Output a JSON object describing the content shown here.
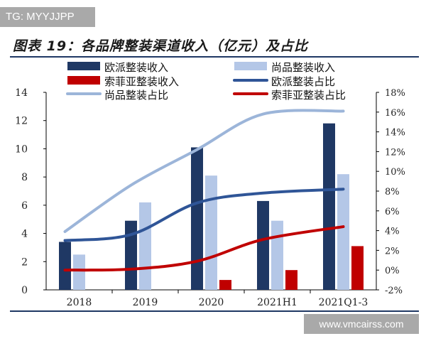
{
  "watermark_top": "TG: MYYJJPP",
  "watermark_bottom": "www.vmcairss.com",
  "title": "图表 19：各品牌整装渠道收入（亿元）及占比",
  "chart_data": {
    "type": "bar",
    "categories": [
      "2018",
      "2019",
      "2020",
      "2021H1",
      "2021Q1-3"
    ],
    "y_left": {
      "min": 0,
      "max": 14,
      "step": 2,
      "ticks": [
        "0",
        "2",
        "4",
        "6",
        "8",
        "10",
        "12",
        "14"
      ]
    },
    "y_right": {
      "min": -2,
      "max": 18,
      "step": 2,
      "ticks": [
        "-2%",
        "0%",
        "2%",
        "4%",
        "6%",
        "8%",
        "10%",
        "12%",
        "14%",
        "16%",
        "18%"
      ]
    },
    "bar_series": [
      {
        "name": "欧派整装收入",
        "values": [
          3.4,
          4.9,
          10.1,
          6.3,
          11.8
        ],
        "color": "#1f3864"
      },
      {
        "name": "尚品整装收入",
        "values": [
          2.5,
          6.2,
          8.1,
          4.9,
          8.2
        ],
        "color": "#b4c7e7"
      },
      {
        "name": "索菲亚整装收入",
        "values": [
          0,
          0,
          0.7,
          1.4,
          3.1
        ],
        "color": "#c00000"
      }
    ],
    "line_series": [
      {
        "name": "欧派整装占比",
        "values": [
          3.0,
          3.6,
          6.8,
          7.8,
          8.2
        ],
        "color": "#2f5597"
      },
      {
        "name": "尚品整装占比",
        "values": [
          3.9,
          8.6,
          12.2,
          15.8,
          16.1
        ],
        "color": "#9cb5d9"
      },
      {
        "name": "索菲亚整装占比",
        "values": [
          0.0,
          0.1,
          0.9,
          3.1,
          4.4
        ],
        "color": "#c00000"
      }
    ],
    "legend": [
      {
        "label": "欧派整装收入",
        "kind": "bar",
        "color": "#1f3864"
      },
      {
        "label": "尚品整装收入",
        "kind": "bar",
        "color": "#b4c7e7"
      },
      {
        "label": "索菲亚整装收入",
        "kind": "bar",
        "color": "#c00000"
      },
      {
        "label": "欧派整装占比",
        "kind": "line",
        "color": "#2f5597"
      },
      {
        "label": "尚品整装占比",
        "kind": "line",
        "color": "#9cb5d9"
      },
      {
        "label": "索菲亚整装占比",
        "kind": "line",
        "color": "#c00000"
      }
    ],
    "grid": false,
    "legend_position": "top"
  }
}
